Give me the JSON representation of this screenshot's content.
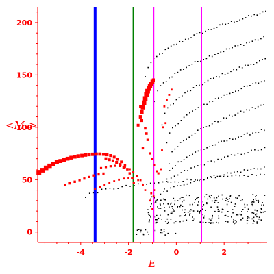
{
  "chart_data": {
    "type": "scatter",
    "xlabel": "E",
    "ylabel": "<M₁>",
    "xlim": [
      -5.8,
      3.8
    ],
    "ylim": [
      -10,
      215
    ],
    "x_ticks": [
      -4,
      -2,
      0,
      2
    ],
    "x_tick_labels": [
      "-4",
      "-2",
      "0",
      "2"
    ],
    "y_ticks": [
      0,
      50,
      100,
      150,
      200
    ],
    "y_tick_labels": [
      "0",
      "50",
      "100",
      "150",
      "200"
    ],
    "axis_color": "#ff0000",
    "vertical_lines": [
      {
        "x": -3.4,
        "color": "#0000ff",
        "style": "thick"
      },
      {
        "x": -1.8,
        "color": "#008000",
        "style": "thin"
      },
      {
        "x": -0.95,
        "color": "#ff00ff",
        "style": "thin"
      },
      {
        "x": 1.05,
        "color": "#ff00ff",
        "style": "thin"
      }
    ],
    "series": [
      {
        "color": "#ff0000",
        "marker": "square",
        "points": [
          [
            -5.75,
            57.0,
            3.5
          ],
          [
            -5.6,
            59.0,
            3.4
          ],
          [
            -5.45,
            61.2,
            3.3
          ],
          [
            -5.3,
            63.2,
            3.2
          ],
          [
            -5.15,
            65.0,
            3.1
          ],
          [
            -5.0,
            66.5,
            3.0
          ],
          [
            -4.85,
            67.8,
            2.9
          ],
          [
            -4.7,
            69.0,
            2.8
          ],
          [
            -4.55,
            70.0,
            2.8
          ],
          [
            -4.4,
            71.0,
            2.7
          ],
          [
            -4.25,
            71.8,
            2.6
          ],
          [
            -4.1,
            72.5,
            2.6
          ],
          [
            -3.95,
            73.0,
            2.5
          ],
          [
            -3.8,
            73.5,
            2.5
          ],
          [
            -3.65,
            73.9,
            2.4
          ],
          [
            -3.5,
            74.2,
            2.4
          ],
          [
            -3.35,
            74.4,
            2.3
          ],
          [
            -3.2,
            74.4,
            2.3
          ],
          [
            -3.05,
            74.2,
            2.2
          ],
          [
            -2.9,
            73.8,
            2.2
          ],
          [
            -2.75,
            73.0,
            2.1
          ],
          [
            -2.6,
            71.5,
            2.0
          ],
          [
            -2.45,
            69.5,
            2.0
          ],
          [
            -2.3,
            67.0,
            1.9
          ],
          [
            -2.15,
            63.5,
            1.8
          ],
          [
            -2.05,
            60.0,
            1.8
          ],
          [
            -1.95,
            56.0,
            1.7
          ],
          [
            -1.85,
            51.5,
            1.6
          ],
          [
            -1.78,
            47.0,
            1.6
          ],
          [
            -2.35,
            64.5,
            2.0
          ],
          [
            -2.2,
            61.5,
            1.9
          ],
          [
            -2.5,
            66.5,
            2.0
          ],
          [
            -2.65,
            68.0,
            2.0
          ],
          [
            -2.8,
            69.0,
            2.0
          ],
          [
            -2.95,
            70.0,
            2.0
          ],
          [
            -3.15,
            61.0,
            1.6
          ],
          [
            -2.95,
            62.0,
            1.6
          ],
          [
            -2.75,
            62.8,
            1.6
          ],
          [
            -2.55,
            63.2,
            1.6
          ],
          [
            -2.35,
            63.0,
            1.6
          ],
          [
            -2.15,
            62.0,
            1.5
          ],
          [
            -1.95,
            60.0,
            1.5
          ],
          [
            -1.8,
            57.0,
            1.5
          ],
          [
            -1.65,
            53.5,
            1.4
          ],
          [
            -1.5,
            49.5,
            1.4
          ],
          [
            -1.4,
            45.0,
            1.4
          ],
          [
            -1.3,
            40.0,
            1.3
          ],
          [
            -4.65,
            45.0,
            1.7
          ],
          [
            -4.45,
            46.5,
            1.7
          ],
          [
            -4.25,
            48.0,
            1.7
          ],
          [
            -4.05,
            49.5,
            1.6
          ],
          [
            -3.85,
            51.0,
            1.6
          ],
          [
            -3.65,
            52.5,
            1.6
          ],
          [
            -3.45,
            54.0,
            1.6
          ],
          [
            -3.25,
            55.0,
            1.6
          ],
          [
            -3.05,
            55.8,
            1.6
          ],
          [
            -3.4,
            41.0,
            1.4
          ],
          [
            -3.2,
            43.0,
            1.4
          ],
          [
            -3.0,
            45.0,
            1.4
          ],
          [
            -2.8,
            47.0,
            1.4
          ],
          [
            -2.6,
            48.5,
            1.4
          ],
          [
            -2.4,
            50.0,
            1.4
          ],
          [
            -2.2,
            51.0,
            1.4
          ],
          [
            -2.0,
            51.5,
            1.4
          ],
          [
            -1.8,
            51.0,
            1.4
          ],
          [
            -1.6,
            49.5,
            1.3
          ],
          [
            -1.5,
            120.0,
            2.0
          ],
          [
            -1.45,
            114.5,
            2.8
          ],
          [
            -1.4,
            119.0,
            3.0
          ],
          [
            -1.35,
            123.5,
            3.2
          ],
          [
            -1.3,
            127.5,
            3.3
          ],
          [
            -1.25,
            131.5,
            3.4
          ],
          [
            -1.2,
            134.5,
            3.4
          ],
          [
            -1.15,
            137.0,
            3.3
          ],
          [
            -1.1,
            139.5,
            3.2
          ],
          [
            -1.05,
            141.5,
            3.0
          ],
          [
            -1.0,
            143.5,
            2.8
          ],
          [
            -0.95,
            145.0,
            2.5
          ],
          [
            -1.5,
            110.0,
            2.4
          ],
          [
            -1.45,
            106.5,
            2.2
          ],
          [
            -1.6,
            102.0,
            2.0
          ],
          [
            -1.3,
            99.0,
            1.8
          ],
          [
            -1.25,
            94.0,
            1.8
          ],
          [
            -1.2,
            88.0,
            1.7
          ],
          [
            -1.4,
            80.0,
            1.7
          ],
          [
            -1.1,
            75.0,
            1.6
          ],
          [
            -1.0,
            70.0,
            1.6
          ],
          [
            -0.9,
            64.0,
            1.5
          ],
          [
            -0.8,
            58.0,
            1.5
          ],
          [
            -0.6,
            78.0,
            1.4
          ],
          [
            -0.5,
            120.0,
            1.4
          ],
          [
            -0.4,
            126.0,
            1.4
          ],
          [
            -0.3,
            131.0,
            1.4
          ],
          [
            -0.2,
            136.0,
            1.4
          ],
          [
            -0.55,
            100.0,
            1.4
          ],
          [
            -0.45,
            104.0,
            1.4
          ],
          [
            -0.75,
            56.0,
            1.5
          ],
          [
            -0.65,
            60.0,
            1.4
          ],
          [
            -1.05,
            37.0,
            1.4
          ],
          [
            -0.95,
            34.0,
            1.4
          ],
          [
            -1.1,
            30.0,
            1.3
          ],
          [
            -1.0,
            22.0,
            1.3
          ],
          [
            -0.9,
            40.0,
            1.3
          ]
        ]
      }
    ]
  }
}
